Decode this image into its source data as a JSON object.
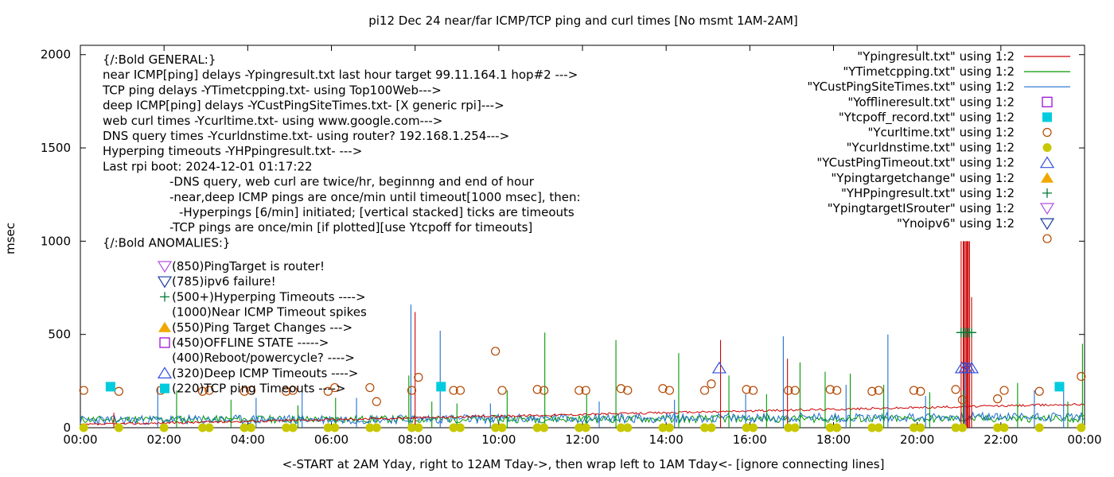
{
  "chart_data": {
    "type": "line",
    "title": "pi12 Dec 24  near/far ICMP/TCP ping and curl times [No msmt 1AM-2AM]",
    "xlabel": "<-START at 2AM Yday, right to 12AM Tday->, then wrap left to 1AM Tday<- [ignore connecting lines]",
    "ylabel": "msec",
    "xlim": [
      0,
      24
    ],
    "ylim": [
      0,
      2050
    ],
    "x_ticks": [
      "00:00",
      "02:00",
      "04:00",
      "06:00",
      "08:00",
      "10:00",
      "12:00",
      "14:00",
      "16:00",
      "18:00",
      "20:00",
      "22:00",
      "00:00"
    ],
    "y_ticks": [
      "0",
      "500",
      "1000",
      "1500",
      "2000"
    ],
    "y_tick_values": [
      0,
      500,
      1000,
      1500,
      2000
    ],
    "grid": false,
    "legend_position": "top-right",
    "legend": [
      {
        "label": "\"Ypingresult.txt\" using 1:2",
        "marker": "line",
        "color": "#cc0000"
      },
      {
        "label": "\"YTimetcpping.txt\" using 1:2",
        "marker": "line",
        "color": "#009900"
      },
      {
        "label": "\"YCustPingSiteTimes.txt\" using 1:2",
        "marker": "line",
        "color": "#1f6fd0"
      },
      {
        "label": "\"Yofflineresult.txt\" using 1:2",
        "marker": "open-square",
        "color": "#9400d3"
      },
      {
        "label": "\"Ytcpoff_record.txt\" using 1:2",
        "marker": "filled-square",
        "color": "#00ccdd"
      },
      {
        "label": "\"Ycurltime.txt\" using 1:2",
        "marker": "open-circle",
        "color": "#b34700"
      },
      {
        "label": "\"Ycurldnstime.txt\" using 1:2",
        "marker": "filled-circle",
        "color": "#c8c800"
      },
      {
        "label": "\"YCustPingTimeout.txt\" using 1:2",
        "marker": "open-triangle-up",
        "color": "#3050e0"
      },
      {
        "label": "\"Ypingtargetchange\" using 1:2",
        "marker": "filled-triangle-up",
        "color": "#f0a800"
      },
      {
        "label": "\"YHPpingresult.txt\" using 1:2",
        "marker": "plus",
        "color": "#007a33"
      },
      {
        "label": "\"YpingtargetISrouter\" using 1:2",
        "marker": "open-triangle-down",
        "color": "#b050e0"
      },
      {
        "label": "\"Ynoipv6\" using 1:2",
        "marker": "open-triangle-down",
        "color": "#1a3aa0"
      },
      {
        "label": "",
        "marker": "open-circle",
        "color": "#b34700"
      }
    ],
    "notes": [
      "{/:Bold GENERAL:}",
      "near ICMP[ping] delays -Ypingresult.txt last hour target 99.11.164.1 hop#2 --->",
      "TCP ping delays -YTimetcpping.txt- using Top100Web--->",
      "deep ICMP[ping] delays -YCustPingSiteTimes.txt- [X generic rpi]--->",
      "web curl times -Ycurltime.txt- using www.google.com--->",
      "DNS query times -Ycurldnstime.txt- using router? 192.168.1.254--->",
      "Hyperping timeouts -YHPpingresult.txt- --->",
      "Last rpi boot: 2024-12-01 01:17:22",
      "-DNS query, web curl are twice/hr, beginnng and end of hour",
      "-near,deep ICMP pings are once/min until timeout[1000 msec], then:",
      "-Hyperpings [6/min] initiated; [vertical stacked] ticks are timeouts",
      "-TCP pings are once/min [if plotted][use Ytcpoff for timeouts]",
      "{/:Bold ANOMALIES:}"
    ],
    "anomalies": [
      {
        "text": "(850)PingTarget is router!",
        "marker": "open-triangle-down",
        "color": "#b050e0"
      },
      {
        "text": "(785)ipv6 failure!",
        "marker": "open-triangle-down",
        "color": "#1a3aa0"
      },
      {
        "text": "(500+)Hyperping Timeouts ---->",
        "marker": "plus",
        "color": "#007a33"
      },
      {
        "text": "(1000)Near ICMP Timeout spikes",
        "marker": "none",
        "color": ""
      },
      {
        "text": "(550)Ping Target Changes --->",
        "marker": "filled-triangle-up",
        "color": "#f0a800"
      },
      {
        "text": "(450)OFFLINE STATE ----->",
        "marker": "open-square",
        "color": "#9400d3"
      },
      {
        "text": "(400)Reboot/powercycle? ---->",
        "marker": "none",
        "color": ""
      },
      {
        "text": "(320)Deep ICMP Timeouts ---->",
        "marker": "open-triangle-up",
        "color": "#3050e0"
      },
      {
        "text": "(220)TCP ping Timeouts ---->",
        "marker": "filled-square",
        "color": "#00ccdd"
      }
    ],
    "series": [
      {
        "name": "Ycurltime.txt",
        "kind": "scatter",
        "x": [
          0.08,
          0.92,
          1.92,
          2.92,
          3.08,
          3.92,
          4.08,
          4.92,
          5.08,
          5.92,
          6.08,
          6.92,
          7.08,
          7.92,
          8.08,
          8.92,
          9.08,
          9.92,
          10.08,
          10.92,
          11.08,
          11.92,
          12.08,
          12.92,
          13.08,
          13.92,
          14.08,
          14.92,
          15.08,
          15.92,
          16.08,
          16.92,
          17.08,
          17.92,
          18.08,
          18.92,
          19.08,
          19.92,
          20.08,
          20.92,
          21.08,
          21.92,
          22.08,
          22.92,
          23.92
        ],
        "y": [
          200,
          195,
          200,
          195,
          200,
          195,
          200,
          195,
          200,
          195,
          215,
          215,
          140,
          200,
          270,
          200,
          200,
          410,
          200,
          205,
          200,
          200,
          200,
          210,
          200,
          210,
          200,
          200,
          235,
          205,
          200,
          200,
          200,
          205,
          200,
          195,
          200,
          200,
          195,
          205,
          150,
          155,
          200,
          195,
          275
        ]
      },
      {
        "name": "Ycurldnstime.txt",
        "kind": "scatter",
        "x": [
          0.08,
          0.92,
          2.0,
          2.92,
          3.08,
          3.92,
          4.08,
          4.92,
          5.08,
          5.92,
          6.08,
          6.92,
          7.08,
          7.92,
          8.08,
          8.92,
          9.08,
          9.92,
          10.08,
          10.92,
          11.08,
          11.92,
          12.08,
          12.92,
          13.08,
          13.92,
          14.08,
          14.92,
          15.08,
          15.92,
          16.08,
          16.92,
          17.08,
          17.92,
          18.08,
          18.92,
          19.08,
          19.92,
          20.08,
          20.92,
          21.08,
          21.92,
          22.08,
          22.92,
          23.92
        ],
        "y": [
          0,
          0,
          0,
          0,
          0,
          0,
          0,
          0,
          0,
          0,
          0,
          0,
          0,
          0,
          0,
          0,
          0,
          0,
          0,
          0,
          0,
          0,
          0,
          0,
          0,
          0,
          0,
          0,
          0,
          0,
          0,
          0,
          0,
          0,
          0,
          0,
          0,
          0,
          0,
          0,
          0,
          0,
          0,
          0,
          0
        ]
      },
      {
        "name": "Ytcpoff_record.txt",
        "kind": "scatter",
        "x": [
          0.72,
          8.62,
          23.4
        ],
        "y": [
          220,
          220,
          220
        ]
      },
      {
        "name": "YCustPingTimeout.txt",
        "kind": "scatter",
        "x": [
          15.27,
          21.07,
          21.15,
          21.22,
          21.3
        ],
        "y": [
          320,
          320,
          320,
          320,
          320
        ]
      },
      {
        "name": "YHPpingresult.txt",
        "kind": "scatter",
        "x": [
          21.05,
          21.1,
          21.15,
          21.2,
          21.25,
          21.3
        ],
        "y": [
          510,
          510,
          510,
          510,
          510,
          510
        ]
      }
    ],
    "spikes": [
      {
        "color": "#cc0000",
        "x": [
          0.8,
          7.9,
          8.0,
          15.3,
          16.9,
          21.05,
          21.1,
          21.12,
          21.15,
          21.18,
          21.2,
          21.22,
          21.25,
          21.3
        ],
        "y": [
          80,
          200,
          620,
          470,
          370,
          1000,
          1000,
          1000,
          1000,
          1000,
          1000,
          1000,
          1000,
          700
        ]
      },
      {
        "color": "#009900",
        "x": [
          2.3,
          3.6,
          5.2,
          6.1,
          7.85,
          8.4,
          9.0,
          10.2,
          11.1,
          12.1,
          12.8,
          14.3,
          15.5,
          16.4,
          17.2,
          17.8,
          18.4,
          19.2,
          20.3,
          21.1,
          22.4,
          23.6,
          23.95
        ],
        "y": [
          200,
          150,
          120,
          160,
          280,
          140,
          130,
          200,
          510,
          180,
          470,
          400,
          280,
          180,
          350,
          300,
          290,
          230,
          190,
          200,
          240,
          140,
          450
        ]
      },
      {
        "color": "#1f6fd0",
        "x": [
          1.85,
          4.2,
          5.3,
          6.6,
          7.9,
          8.6,
          9.8,
          12.4,
          14.2,
          15.9,
          16.8,
          18.3,
          19.3,
          20.2,
          21.15,
          22.8,
          23.5
        ],
        "y": [
          220,
          160,
          200,
          160,
          660,
          520,
          130,
          140,
          150,
          180,
          490,
          230,
          500,
          170,
          300,
          200,
          210
        ]
      }
    ]
  }
}
